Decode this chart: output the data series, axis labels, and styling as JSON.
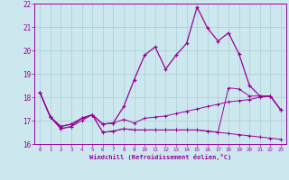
{
  "xlabel": "Windchill (Refroidissement éolien,°C)",
  "background_color": "#cce8ee",
  "grid_color": "#aaccd4",
  "line_color": "#990099",
  "xlim": [
    -0.5,
    23.5
  ],
  "ylim": [
    16,
    22
  ],
  "yticks": [
    16,
    17,
    18,
    19,
    20,
    21,
    22
  ],
  "xticks": [
    0,
    1,
    2,
    3,
    4,
    5,
    6,
    7,
    8,
    9,
    10,
    11,
    12,
    13,
    14,
    15,
    16,
    17,
    18,
    19,
    20,
    21,
    22,
    23
  ],
  "line1_x": [
    0,
    1,
    2,
    3,
    4,
    5,
    6,
    7,
    8,
    9,
    10,
    11,
    12,
    13,
    14,
    15,
    16,
    17,
    18,
    19,
    20,
    21,
    22,
    23
  ],
  "line1_y": [
    18.2,
    17.15,
    16.65,
    16.75,
    17.1,
    17.25,
    16.5,
    16.55,
    16.65,
    16.6,
    16.6,
    16.6,
    16.6,
    16.6,
    16.6,
    16.6,
    16.55,
    16.5,
    16.45,
    16.4,
    16.35,
    16.3,
    16.25,
    16.2
  ],
  "line2_x": [
    0,
    1,
    2,
    3,
    4,
    5,
    6,
    7,
    8,
    9,
    10,
    11,
    12,
    13,
    14,
    15,
    16,
    17,
    18,
    19,
    20,
    21,
    22,
    23
  ],
  "line2_y": [
    18.2,
    17.15,
    16.75,
    16.85,
    17.1,
    17.25,
    16.85,
    16.9,
    17.05,
    16.9,
    17.1,
    17.15,
    17.2,
    17.3,
    17.4,
    17.5,
    17.6,
    17.7,
    17.8,
    17.85,
    17.9,
    18.0,
    18.05,
    17.45
  ],
  "line3_x": [
    0,
    1,
    2,
    3,
    4,
    5,
    6,
    7,
    8,
    9,
    10,
    11,
    12,
    13,
    14,
    15,
    16,
    17,
    18,
    19,
    20,
    21,
    22,
    23
  ],
  "line3_y": [
    18.2,
    17.15,
    16.75,
    16.85,
    17.1,
    17.25,
    16.85,
    16.9,
    17.6,
    18.75,
    19.8,
    20.15,
    19.2,
    19.8,
    20.3,
    21.85,
    20.95,
    20.4,
    20.75,
    19.85,
    18.5,
    18.05,
    18.05,
    17.45
  ],
  "line4_x": [
    0,
    1,
    2,
    3,
    4,
    5,
    6,
    7,
    8,
    9,
    10,
    11,
    12,
    13,
    14,
    15,
    16,
    17,
    18,
    19,
    20,
    21,
    22,
    23
  ],
  "line4_y": [
    18.2,
    17.15,
    16.65,
    16.75,
    17.0,
    17.25,
    16.5,
    16.55,
    16.65,
    16.6,
    16.6,
    16.6,
    16.6,
    16.6,
    16.6,
    16.6,
    16.55,
    16.5,
    18.4,
    18.35,
    18.05,
    18.05,
    18.05,
    17.45
  ]
}
